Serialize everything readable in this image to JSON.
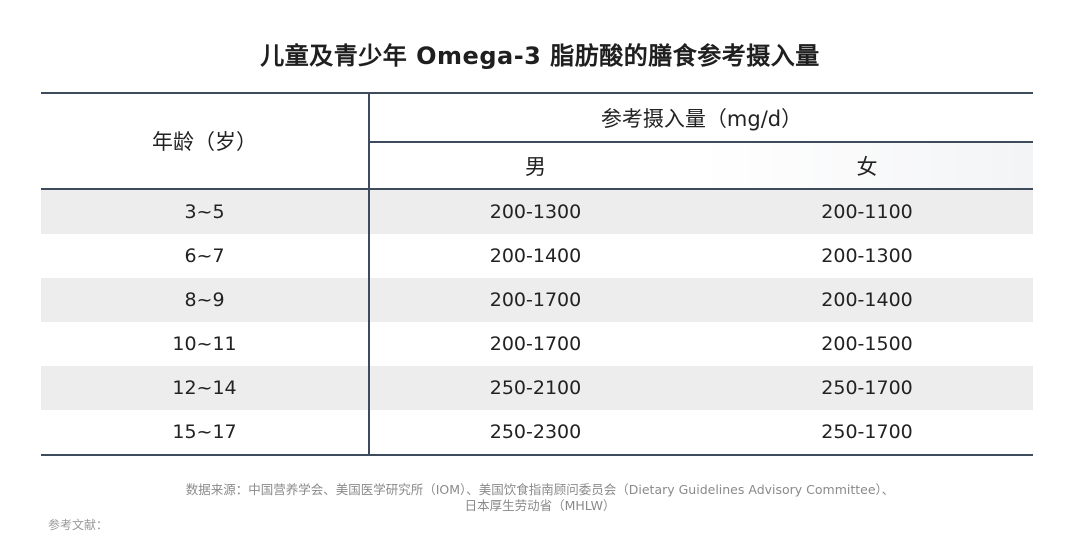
{
  "title": "儿童及青少年 Omega-3 脂肪酸的膳食参考摄入量",
  "table": {
    "age_header": "年龄（岁）",
    "intake_header": "参考摄入量（mg/d）",
    "male_header": "男",
    "female_header": "女",
    "rows": [
      {
        "age": "3~5",
        "male": "200-1300",
        "female": "200-1100"
      },
      {
        "age": "6~7",
        "male": "200-1400",
        "female": "200-1300"
      },
      {
        "age": "8~9",
        "male": "200-1700",
        "female": "200-1400"
      },
      {
        "age": "10~11",
        "male": "200-1700",
        "female": "200-1500"
      },
      {
        "age": "12~14",
        "male": "250-2100",
        "female": "250-1700"
      },
      {
        "age": "15~17",
        "male": "250-2300",
        "female": "250-1700"
      }
    ]
  },
  "source": {
    "line1": "数据来源：中国营养学会、美国医学研究所（IOM）、美国饮食指南顾问委员会（Dietary Guidelines Advisory Committee）、",
    "line2": "日本厚生劳动省（MHLW）"
  },
  "references_label": "参考文献："
}
